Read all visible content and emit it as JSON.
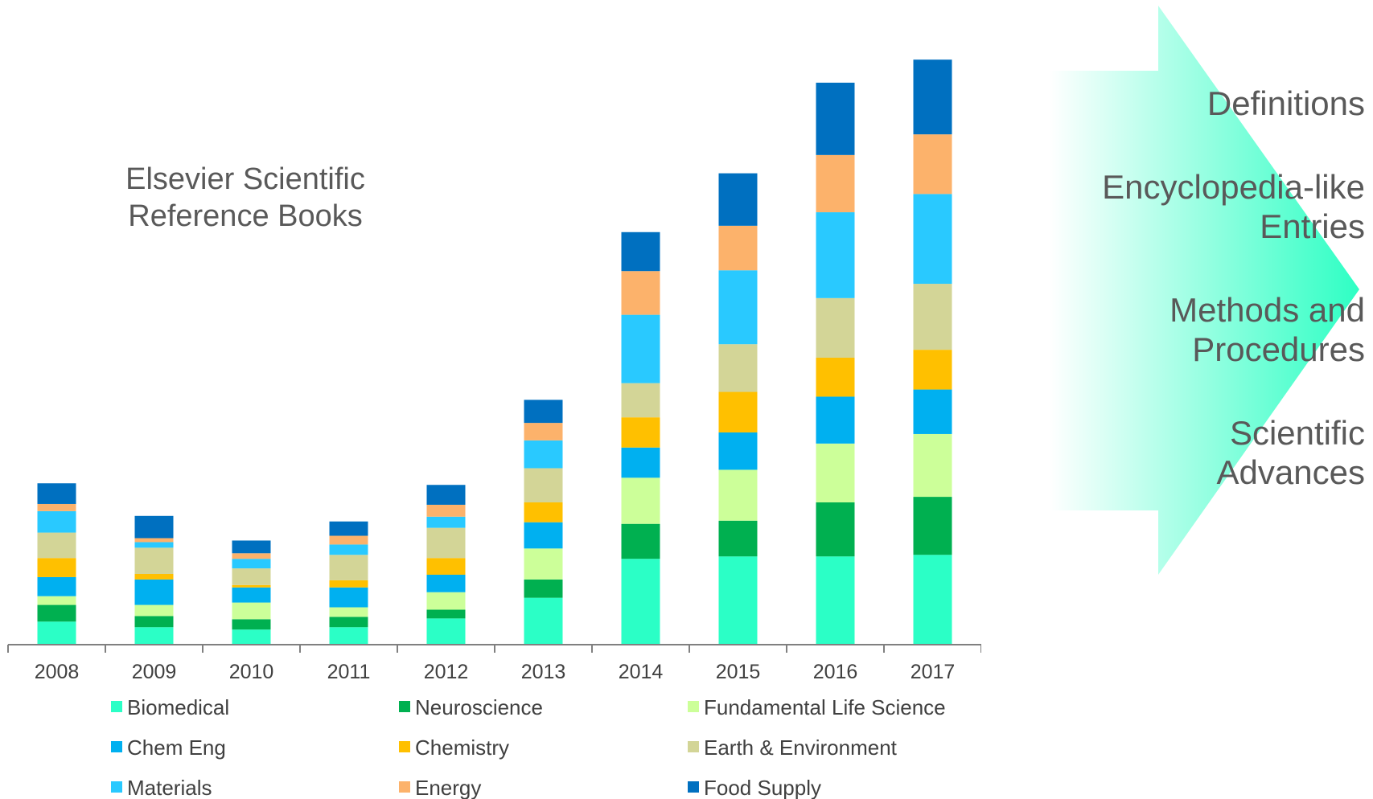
{
  "title_lines": [
    "Elsevier Scientific",
    "Reference Books"
  ],
  "topics": [
    {
      "lines": [
        "Definitions"
      ]
    },
    {
      "lines": [
        "Encyclopedia-like",
        "Entries"
      ]
    },
    {
      "lines": [
        "Methods and",
        "Procedures"
      ]
    },
    {
      "lines": [
        "Scientific",
        "Advances"
      ]
    }
  ],
  "colors": {
    "arrow_start": "#ffffff",
    "arrow_end": "#2effc4",
    "axis": "#808080"
  },
  "chart_data": {
    "type": "bar",
    "stacked": true,
    "title": "",
    "xlabel": "",
    "ylabel": "",
    "categories": [
      "2008",
      "2009",
      "2010",
      "2011",
      "2012",
      "2013",
      "2014",
      "2015",
      "2016",
      "2017"
    ],
    "ylim": [
      0,
      720
    ],
    "grid": false,
    "legend_position": "bottom",
    "series": [
      {
        "name": "Biomedical",
        "color": "#2bffc6",
        "values": [
          29,
          22,
          19,
          22,
          33,
          59,
          108,
          111,
          111,
          113
        ]
      },
      {
        "name": "Neuroscience",
        "color": "#00b050",
        "values": [
          21,
          14,
          13,
          13,
          11,
          23,
          44,
          45,
          68,
          73
        ]
      },
      {
        "name": "Fundamental Life Science",
        "color": "#ccff99",
        "values": [
          11,
          14,
          21,
          12,
          22,
          39,
          58,
          64,
          74,
          79
        ]
      },
      {
        "name": "Chem Eng",
        "color": "#00b0f0",
        "values": [
          24,
          32,
          19,
          25,
          22,
          33,
          38,
          47,
          59,
          56
        ]
      },
      {
        "name": "Chemistry",
        "color": "#ffc000",
        "values": [
          24,
          7,
          3,
          9,
          21,
          25,
          38,
          51,
          49,
          50
        ]
      },
      {
        "name": "Earth & Environment",
        "color": "#d3d597",
        "values": [
          32,
          33,
          21,
          32,
          38,
          43,
          43,
          60,
          75,
          83
        ]
      },
      {
        "name": "Materials",
        "color": "#29c9ff",
        "values": [
          27,
          7,
          12,
          13,
          14,
          35,
          86,
          93,
          108,
          113
        ]
      },
      {
        "name": "Energy",
        "color": "#fcb26b",
        "values": [
          9,
          5,
          7,
          11,
          15,
          22,
          55,
          56,
          72,
          75
        ]
      },
      {
        "name": "Food Supply",
        "color": "#0070c0",
        "values": [
          26,
          28,
          16,
          18,
          25,
          29,
          49,
          66,
          91,
          94
        ]
      }
    ]
  }
}
